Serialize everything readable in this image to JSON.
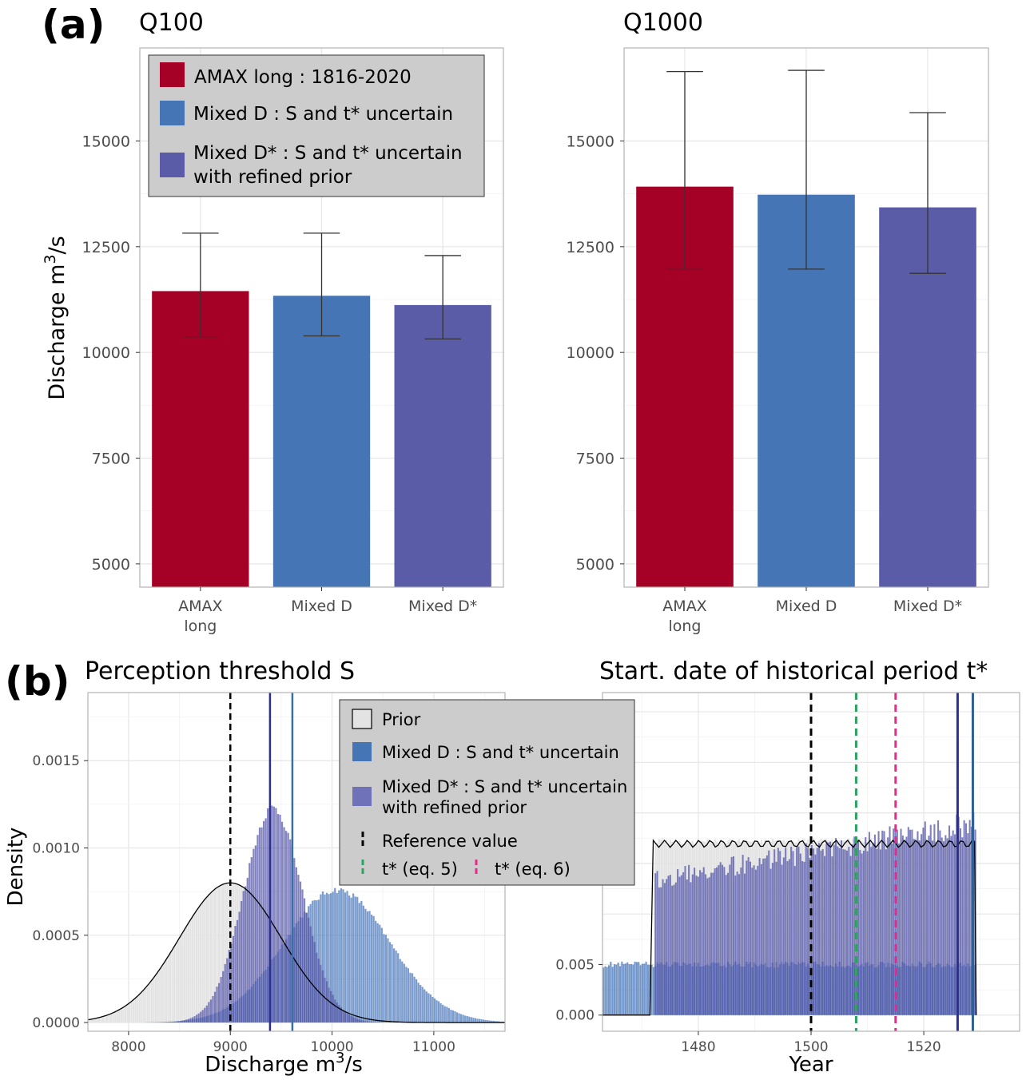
{
  "panel_a_tag": "(a)",
  "panel_b_tag": "(b)",
  "colors": {
    "amax": "#a50026",
    "mixed_d": "#4575b4",
    "mixed_dstar": "#5a5ca8",
    "prior": "#e3e3e3",
    "reference": "#000000",
    "t_eq5": "#2ca25f",
    "t_eq6": "#e7298a",
    "legend_bg": "#cccccc",
    "grid": "#e6e6e6"
  },
  "legend_a": {
    "items": [
      {
        "label": "AMAX long : 1816-2020",
        "color": "#a50026"
      },
      {
        "label": "Mixed D : S and t* uncertain",
        "color": "#4575b4"
      },
      {
        "label": "Mixed D* : S and t* uncertain",
        "label2": "with refined prior",
        "color": "#5a5ca8"
      }
    ]
  },
  "legend_b": {
    "prior": "Prior",
    "mixed_d": "Mixed D : S and t* uncertain",
    "mixed_dstar": "Mixed D* : S and t* uncertain",
    "mixed_dstar_2": "with refined prior",
    "reference": "Reference value",
    "t_eq5": "t* (eq. 5)",
    "t_eq6": "t* (eq. 6)"
  },
  "ylabel_a": "Discharge m",
  "ylabel_a_sup": "3",
  "ylabel_a_tail": "/s",
  "xlabel_b1": "Discharge m",
  "xlabel_b1_sup": "3",
  "xlabel_b1_tail": "/s",
  "ylabel_b1": "Density",
  "xlabel_b2": "Year",
  "chart_data": [
    {
      "type": "bar",
      "title": "Q100",
      "categories": [
        "AMAX long",
        "Mixed D",
        "Mixed D*"
      ],
      "category_lines": [
        [
          "AMAX",
          "long"
        ],
        [
          "Mixed D"
        ],
        [
          "Mixed D*"
        ]
      ],
      "values": [
        11450,
        11340,
        11120
      ],
      "error_low": [
        10370,
        10390,
        10320
      ],
      "error_high": [
        12820,
        12820,
        12290
      ],
      "ylim": [
        4450,
        17200
      ],
      "yticks": [
        5000,
        7500,
        10000,
        12500,
        15000
      ]
    },
    {
      "type": "bar",
      "title": "Q1000",
      "categories": [
        "AMAX long",
        "Mixed D",
        "Mixed D*"
      ],
      "category_lines": [
        [
          "AMAX",
          "long"
        ],
        [
          "Mixed D"
        ],
        [
          "Mixed D*"
        ]
      ],
      "values": [
        13920,
        13730,
        13430
      ],
      "error_low": [
        11960,
        11970,
        11870
      ],
      "error_high": [
        16640,
        16670,
        15670
      ],
      "ylim": [
        4450,
        17200
      ],
      "yticks": [
        5000,
        7500,
        10000,
        12500,
        15000
      ]
    },
    {
      "type": "area",
      "title": "Perception threshold S",
      "xlim": [
        7600,
        11700
      ],
      "ylim": [
        -5e-05,
        0.00189
      ],
      "xticks": [
        8000,
        9000,
        10000,
        11000
      ],
      "yticks": [
        0.0,
        0.0005,
        0.001,
        0.0015
      ],
      "ytick_labels": [
        "0.0000",
        "0.0005",
        "0.0010",
        "0.0015"
      ],
      "series": [
        {
          "name": "Prior",
          "mean": 9000,
          "sd": 500,
          "peak": 0.0008
        },
        {
          "name": "Mixed D : S and t* uncertain",
          "mean": 10050,
          "sd": 520,
          "peak": 0.00076
        },
        {
          "name": "Mixed D* : S and t* uncertain with refined prior",
          "mean": 9420,
          "sd": 290,
          "peak": 0.00123
        }
      ],
      "vlines": {
        "reference": 9000,
        "mixed_dstar": 9390,
        "mixed_d": 9610
      }
    },
    {
      "type": "area",
      "title": "Start. date of historical period t*",
      "xlim": [
        1463,
        1537
      ],
      "ylim": [
        -0.0016,
        0.0319
      ],
      "xticks": [
        1480,
        1500,
        1520
      ],
      "yticks": [
        0.0,
        0.005
      ],
      "ytick_labels": [
        "0.000",
        "0.005"
      ],
      "series": [
        {
          "name": "Prior",
          "from": 1472,
          "to": 1529,
          "level": 0.0172
        },
        {
          "name": "Mixed D : S and t* uncertain",
          "from": 1463,
          "to": 1529,
          "level": 0.005
        },
        {
          "name": "Mixed D* : S and t* uncertain with refined prior",
          "from": 1472,
          "to": 1529,
          "level_start": 0.0134,
          "level_end": 0.019
        }
      ],
      "vlines": {
        "reference": 1500,
        "t_eq5": 1508,
        "t_eq6": 1515,
        "mixed_dstar": 1526,
        "mixed_d": 1528.7
      }
    }
  ]
}
